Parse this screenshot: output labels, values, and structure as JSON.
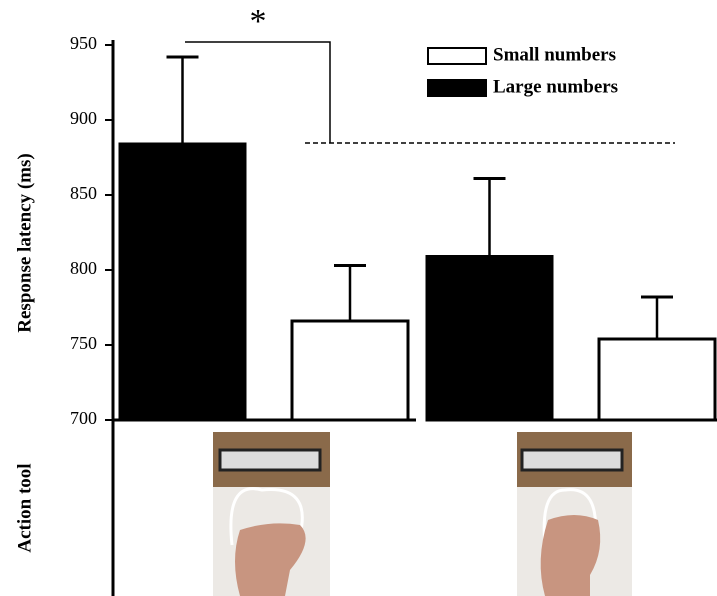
{
  "chart_data": {
    "type": "bar",
    "categories": [
      null,
      null
    ],
    "series": [
      {
        "name": "Large numbers",
        "color": "#000000",
        "values": [
          884,
          809
        ],
        "errors": [
          58,
          52
        ]
      },
      {
        "name": "Small numbers",
        "color": "#ffffff",
        "values": [
          766,
          754
        ],
        "errors": [
          37,
          28
        ]
      }
    ],
    "y_label": "Response latency (ms)",
    "x_label": "Action tool",
    "annotation": "*",
    "ylim": [
      700,
      950
    ],
    "yticks": [
      700,
      750,
      800,
      850,
      900,
      950
    ]
  }
}
